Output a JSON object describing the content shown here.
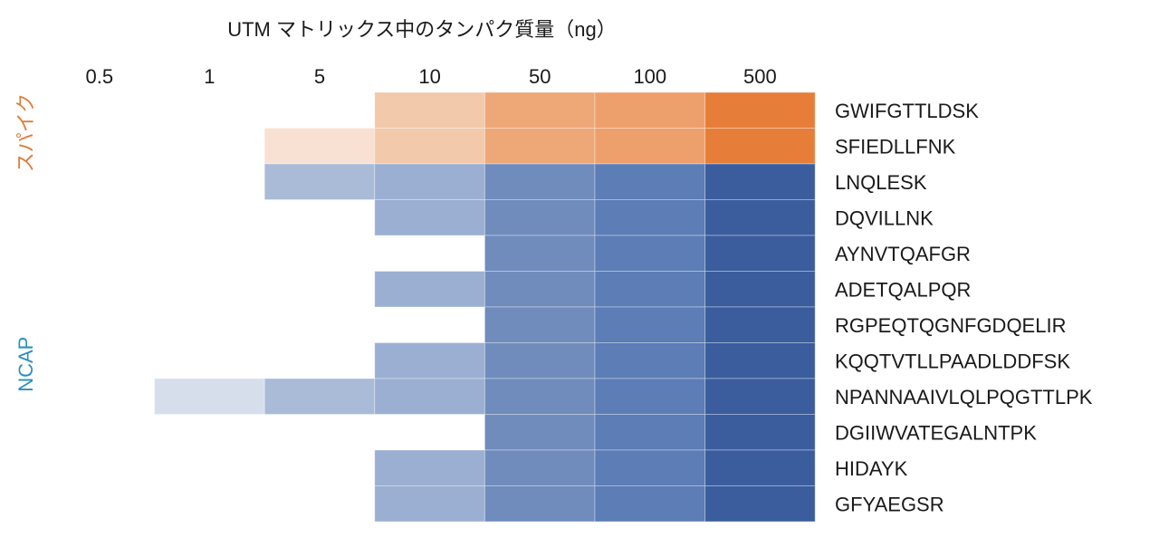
{
  "chart_data": {
    "type": "heatmap",
    "title": "UTM マトリックス中のタンパク質量（ng）",
    "columns": [
      "0.5",
      "1",
      "5",
      "10",
      "50",
      "100",
      "500"
    ],
    "groups": [
      {
        "name": "スパイク",
        "color": "#e07b39",
        "rows": [
          0,
          1
        ]
      },
      {
        "name": "NCAP",
        "color": "#2a8fc1",
        "rows": [
          2,
          3,
          4,
          5,
          6,
          7,
          8,
          9,
          10,
          11
        ]
      }
    ],
    "rows": [
      "GWIFGTTLDSK",
      "SFIEDLLFNK",
      "LNQLESK",
      "DQVILLNK",
      "AYNVTQAFGR",
      "ADETQALPQR",
      "RGPEQTQGNFGDQELIR",
      "KQQTVTLLPAADLDDFSK",
      "NPANNAAIVLQLPQGTTLPK",
      "DGIIWVATEGALNTPK",
      "HIDAYK",
      "GFYAEGSR"
    ],
    "palette": {
      "orange": [
        "#ffffff",
        "#ffffff",
        "#f8e0d3",
        "#f3c9ab",
        "#eea877",
        "#eea06c",
        "#e67e3a"
      ],
      "blue": [
        "#ffffff",
        "#d5deea",
        "#aabbd8",
        "#9bafd2",
        "#6f8cbc",
        "#5c7db5",
        "#3b5d9e"
      ]
    },
    "values": [
      [
        0,
        0,
        0,
        3,
        4,
        5,
        6
      ],
      [
        0,
        0,
        2,
        3,
        4,
        5,
        6
      ],
      [
        0,
        0,
        2,
        3,
        4,
        5,
        6
      ],
      [
        0,
        0,
        0,
        3,
        4,
        5,
        6
      ],
      [
        0,
        0,
        0,
        0,
        4,
        5,
        6
      ],
      [
        0,
        0,
        0,
        3,
        4,
        5,
        6
      ],
      [
        0,
        0,
        0,
        0,
        4,
        5,
        6
      ],
      [
        0,
        0,
        0,
        3,
        4,
        5,
        6
      ],
      [
        0,
        1,
        2,
        3,
        4,
        5,
        6
      ],
      [
        0,
        0,
        0,
        0,
        4,
        5,
        6
      ],
      [
        0,
        0,
        0,
        3,
        4,
        5,
        6
      ],
      [
        0,
        0,
        0,
        3,
        4,
        5,
        6
      ]
    ],
    "grid": false,
    "legend": "none"
  }
}
